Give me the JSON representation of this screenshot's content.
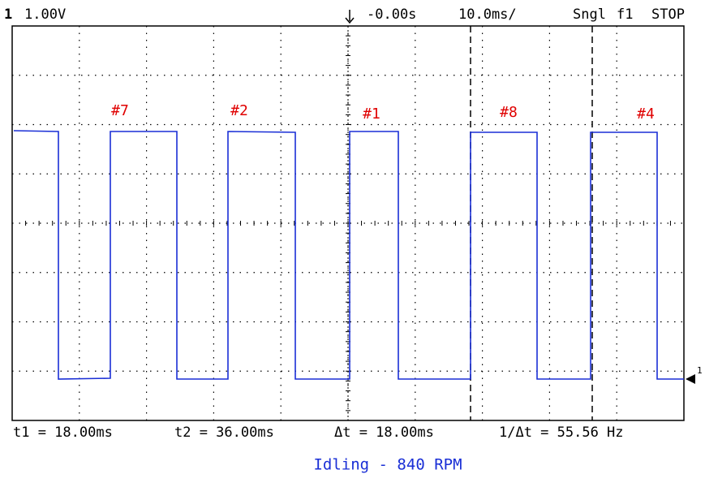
{
  "header": {
    "channel": "1",
    "scale": "1.00V",
    "delay": "-0.00s",
    "timebase": "10.0ms/",
    "mode": "Sngl",
    "trigger_source": "f1",
    "status": "STOP"
  },
  "labels": [
    "#7",
    "#2",
    "#1",
    "#8",
    "#4"
  ],
  "measurements": [
    "t1 = 18.00ms",
    "t2 = 36.00ms",
    "Δt = 18.00ms",
    "1/Δt = 55.56 Hz"
  ],
  "ground_marker": "1",
  "caption": "Idling - 840 RPM"
}
